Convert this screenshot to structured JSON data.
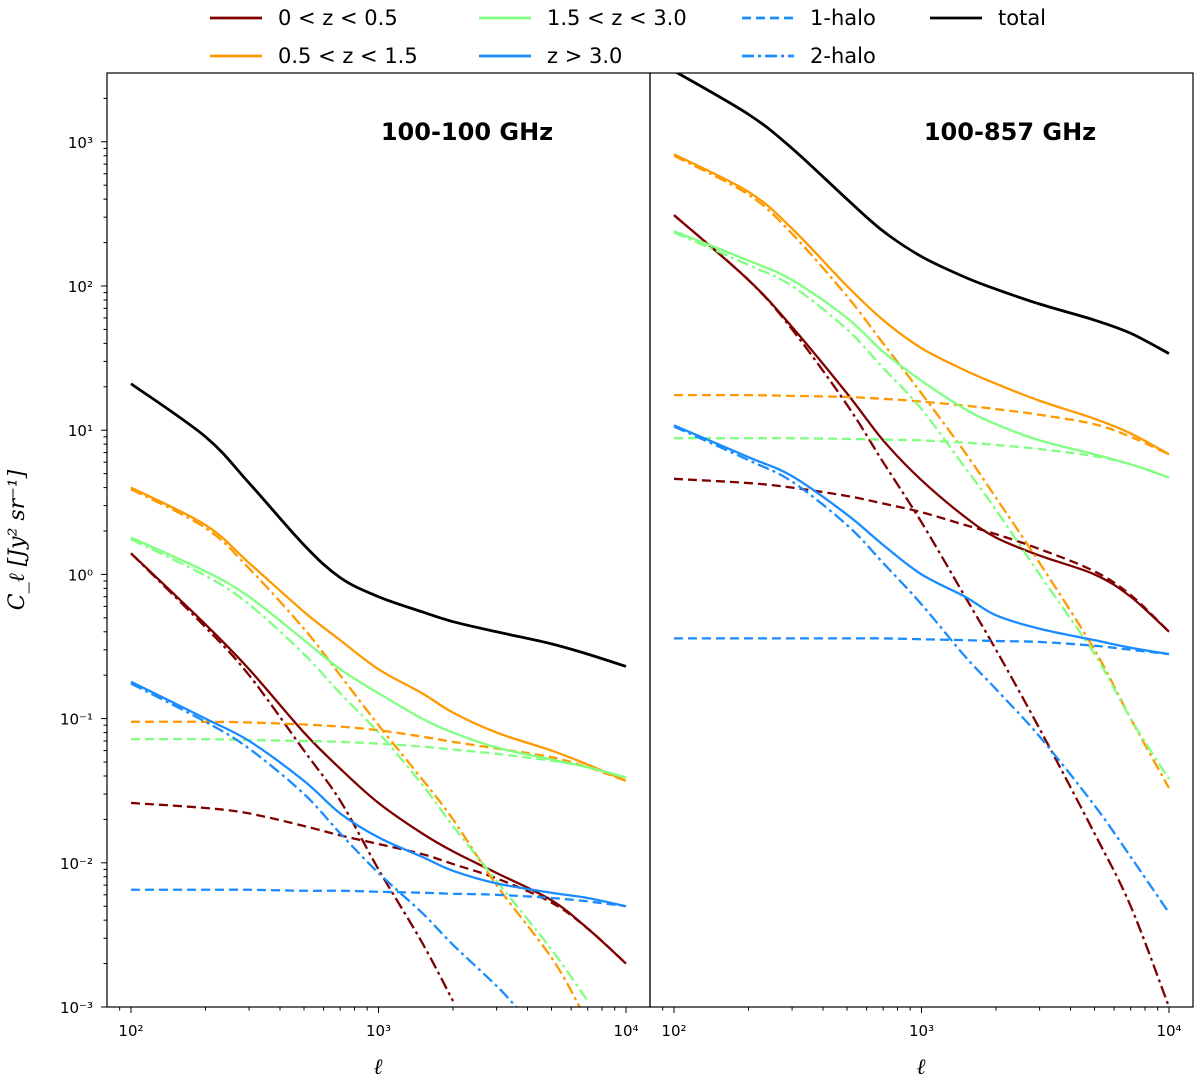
{
  "chart_data": {
    "type": "line",
    "x_scale": "log",
    "y_scale": "log",
    "xlabel": "ℓ",
    "ylabel": "C_ℓ [Jy² sr⁻¹]",
    "xlim": [
      80,
      12500
    ],
    "ylim": [
      0.001,
      3000
    ],
    "x_ticks": [
      {
        "value": 100,
        "label": "10²"
      },
      {
        "value": 1000,
        "label": "10³"
      },
      {
        "value": 10000,
        "label": "10⁴"
      }
    ],
    "y_ticks": [
      {
        "value": 0.001,
        "label": "10⁻³"
      },
      {
        "value": 0.01,
        "label": "10⁻²"
      },
      {
        "value": 0.1,
        "label": "10⁻¹"
      },
      {
        "value": 1,
        "label": "10⁰"
      },
      {
        "value": 10,
        "label": "10¹"
      },
      {
        "value": 100,
        "label": "10²"
      },
      {
        "value": 1000,
        "label": "10³"
      }
    ],
    "legend": {
      "placement": "top",
      "entries": [
        {
          "label": "0 < z < 0.5",
          "color": "#7f0000",
          "style": "solid"
        },
        {
          "label": "0.5 < z < 1.5",
          "color": "#ff9900",
          "style": "solid"
        },
        {
          "label": "1.5 < z < 3.0",
          "color": "#80ff80",
          "style": "solid"
        },
        {
          "label": "z > 3.0",
          "color": "#1a8cff",
          "style": "solid"
        },
        {
          "label": "1-halo",
          "color": "#1a8cff",
          "style": "dashed"
        },
        {
          "label": "2-halo",
          "color": "#1a8cff",
          "style": "dashdot"
        },
        {
          "label": "total",
          "color": "#000000",
          "style": "solid"
        }
      ]
    },
    "styles": {
      "total": {
        "dash": ""
      },
      "total_z": {
        "dash": ""
      },
      "1h": {
        "dash": "9,5"
      },
      "2h": {
        "dash": "12,4,3,4"
      }
    },
    "x_samples": [
      100,
      200,
      300,
      500,
      700,
      1000,
      1500,
      2000,
      3000,
      5000,
      7000,
      10000
    ],
    "panels": [
      {
        "title": "100-100 GHz",
        "series": [
          {
            "name": "total",
            "color": "#000000",
            "kind": "total",
            "x": [
              100,
              200,
              300,
              500,
              700,
              1000,
              1500,
              2000,
              3000,
              5000,
              7000,
              10000
            ],
            "y": [
              21,
              9,
              4.3,
              1.6,
              0.95,
              0.7,
              0.55,
              0.47,
              0.4,
              0.33,
              0.28,
              0.23
            ]
          },
          {
            "name": "0 < z < 0.5",
            "color": "#7f0000",
            "kind": "total_z",
            "x": [
              100,
              200,
              300,
              500,
              700,
              1000,
              1500,
              2000,
              3000,
              5000,
              7000,
              10000
            ],
            "y": [
              1.4,
              0.45,
              0.22,
              0.08,
              0.045,
              0.026,
              0.016,
              0.012,
              0.0085,
              0.0055,
              0.0035,
              0.002
            ]
          },
          {
            "name": "0 < z < 0.5 1-halo",
            "color": "#7f0000",
            "kind": "1h",
            "x": [
              100,
              200,
              300,
              500,
              700,
              1000,
              1500,
              2000,
              3000,
              5000,
              7000,
              10000
            ],
            "y": [
              0.026,
              0.024,
              0.022,
              0.018,
              0.0155,
              0.0135,
              0.0115,
              0.0098,
              0.0078,
              0.0053,
              0.0035,
              0.002
            ]
          },
          {
            "name": "0 < z < 0.5 2-halo",
            "color": "#7f0000",
            "kind": "2h",
            "x": [
              100,
              200,
              300,
              500,
              700,
              1000,
              1500,
              2000
            ],
            "y": [
              1.4,
              0.43,
              0.2,
              0.06,
              0.027,
              0.009,
              0.0028,
              0.0011
            ]
          },
          {
            "name": "0.5 < z < 1.5",
            "color": "#ff9900",
            "kind": "total_z",
            "x": [
              100,
              200,
              300,
              500,
              700,
              1000,
              1500,
              2000,
              3000,
              5000,
              7000,
              10000
            ],
            "y": [
              4,
              2.2,
              1.2,
              0.55,
              0.35,
              0.22,
              0.15,
              0.11,
              0.08,
              0.06,
              0.048,
              0.037
            ]
          },
          {
            "name": "0.5 < z < 1.5 1-halo",
            "color": "#ff9900",
            "kind": "1h",
            "x": [
              100,
              200,
              300,
              500,
              700,
              1000,
              1500,
              2000,
              3000,
              5000,
              7000,
              10000
            ],
            "y": [
              0.095,
              0.095,
              0.094,
              0.091,
              0.088,
              0.083,
              0.075,
              0.069,
              0.062,
              0.054,
              0.046,
              0.037
            ]
          },
          {
            "name": "0.5 < z < 1.5 2-halo",
            "color": "#ff9900",
            "kind": "2h",
            "x": [
              100,
              200,
              300,
              500,
              700,
              1000,
              1500,
              2000,
              3000,
              5000,
              6500
            ],
            "y": [
              3.9,
              2.1,
              1.1,
              0.42,
              0.2,
              0.09,
              0.038,
              0.02,
              0.007,
              0.0022,
              0.001
            ]
          },
          {
            "name": "1.5 < z < 3.0",
            "color": "#80ff80",
            "kind": "total_z",
            "x": [
              100,
              200,
              300,
              500,
              700,
              1000,
              1500,
              2000,
              3000,
              5000,
              7000,
              10000
            ],
            "y": [
              1.8,
              1.05,
              0.7,
              0.35,
              0.22,
              0.15,
              0.1,
              0.08,
              0.063,
              0.052,
              0.046,
              0.039
            ]
          },
          {
            "name": "1.5 < z < 3.0 1-halo",
            "color": "#80ff80",
            "kind": "1h",
            "x": [
              100,
              200,
              300,
              500,
              700,
              1000,
              1500,
              2000,
              3000,
              5000,
              7000,
              10000
            ],
            "y": [
              0.072,
              0.072,
              0.071,
              0.07,
              0.069,
              0.067,
              0.064,
              0.061,
              0.057,
              0.051,
              0.046,
              0.039
            ]
          },
          {
            "name": "1.5 < z < 3.0 2-halo",
            "color": "#80ff80",
            "kind": "2h",
            "x": [
              100,
              200,
              300,
              500,
              700,
              1000,
              1500,
              2000,
              3000,
              5000,
              7000
            ],
            "y": [
              1.75,
              0.98,
              0.62,
              0.28,
              0.15,
              0.08,
              0.035,
              0.018,
              0.0075,
              0.0025,
              0.0011
            ]
          },
          {
            "name": "z > 3.0",
            "color": "#1a8cff",
            "kind": "total_z",
            "x": [
              100,
              200,
              300,
              500,
              700,
              1000,
              1500,
              2000,
              3000,
              5000,
              7000,
              10000
            ],
            "y": [
              0.18,
              0.1,
              0.07,
              0.037,
              0.022,
              0.015,
              0.011,
              0.0088,
              0.0072,
              0.0062,
              0.0057,
              0.005
            ]
          },
          {
            "name": "z > 3.0 1-halo",
            "color": "#1a8cff",
            "kind": "1h",
            "x": [
              100,
              200,
              300,
              500,
              700,
              1000,
              1500,
              2000,
              3000,
              5000,
              7000,
              10000
            ],
            "y": [
              0.0065,
              0.0065,
              0.0065,
              0.0064,
              0.0064,
              0.0063,
              0.0062,
              0.0061,
              0.006,
              0.0057,
              0.0054,
              0.005
            ]
          },
          {
            "name": "z > 3.0 2-halo",
            "color": "#1a8cff",
            "kind": "2h",
            "x": [
              100,
              200,
              300,
              500,
              700,
              1000,
              1500,
              2000,
              3000,
              3600
            ],
            "y": [
              0.175,
              0.095,
              0.062,
              0.03,
              0.016,
              0.0085,
              0.0045,
              0.0027,
              0.0014,
              0.001
            ]
          }
        ]
      },
      {
        "title": "100-857 GHz",
        "series": [
          {
            "name": "total",
            "color": "#000000",
            "kind": "total",
            "x": [
              100,
              200,
              300,
              500,
              700,
              1000,
              1500,
              2000,
              3000,
              5000,
              7000,
              10000
            ],
            "y": [
              3100,
              1550,
              900,
              400,
              240,
              160,
              115,
              95,
              75,
              58,
              47,
              34
            ]
          },
          {
            "name": "0 < z < 0.5",
            "color": "#7f0000",
            "kind": "total_z",
            "x": [
              100,
              200,
              300,
              500,
              700,
              1000,
              1500,
              2000,
              3000,
              5000,
              7000,
              10000
            ],
            "y": [
              310,
              110,
              52,
              18,
              8.5,
              4.5,
              2.5,
              1.8,
              1.35,
              1.0,
              0.7,
              0.4
            ]
          },
          {
            "name": "0 < z < 0.5 1-halo",
            "color": "#7f0000",
            "kind": "1h",
            "x": [
              100,
              200,
              300,
              500,
              700,
              1000,
              1500,
              2000,
              3000,
              5000,
              7000,
              10000
            ],
            "y": [
              4.6,
              4.3,
              4.0,
              3.5,
              3.1,
              2.7,
              2.2,
              1.9,
              1.5,
              1.05,
              0.72,
              0.4
            ]
          },
          {
            "name": "0 < z < 0.5 2-halo",
            "color": "#7f0000",
            "kind": "2h",
            "x": [
              100,
              200,
              300,
              500,
              700,
              1000,
              1500,
              2000,
              3000,
              5000,
              7000,
              10000
            ],
            "y": [
              310,
              110,
              50,
              15,
              6,
              2.3,
              0.7,
              0.3,
              0.085,
              0.016,
              0.005,
              0.001
            ]
          },
          {
            "name": "0.5 < z < 1.5",
            "color": "#ff9900",
            "kind": "total_z",
            "x": [
              100,
              200,
              300,
              500,
              700,
              1000,
              1500,
              2000,
              3000,
              5000,
              7000,
              10000
            ],
            "y": [
              820,
              450,
              250,
              100,
              58,
              37,
              26,
              21,
              16,
              12,
              9.5,
              6.8
            ]
          },
          {
            "name": "0.5 < z < 1.5 1-halo",
            "color": "#ff9900",
            "kind": "1h",
            "x": [
              100,
              200,
              300,
              500,
              700,
              1000,
              1500,
              2000,
              3000,
              5000,
              7000,
              10000
            ],
            "y": [
              17.5,
              17.5,
              17.3,
              17,
              16.5,
              15.8,
              14.8,
              14,
              12.8,
              11,
              9,
              6.8
            ]
          },
          {
            "name": "0.5 < z < 1.5 2-halo",
            "color": "#ff9900",
            "kind": "2h",
            "x": [
              100,
              200,
              300,
              500,
              700,
              1000,
              1500,
              2000,
              3000,
              5000,
              7000,
              10000
            ],
            "y": [
              800,
              430,
              230,
              85,
              40,
              18,
              7,
              3.4,
              1.2,
              0.3,
              0.1,
              0.033
            ]
          },
          {
            "name": "1.5 < z < 3.0",
            "color": "#80ff80",
            "kind": "total_z",
            "x": [
              100,
              200,
              300,
              500,
              700,
              1000,
              1500,
              2000,
              3000,
              5000,
              7000,
              10000
            ],
            "y": [
              240,
              150,
              110,
              60,
              35,
              22,
              14,
              11,
              8.5,
              6.8,
              5.8,
              4.7
            ]
          },
          {
            "name": "1.5 < z < 3.0 1-halo",
            "color": "#80ff80",
            "kind": "1h",
            "x": [
              100,
              200,
              300,
              500,
              700,
              1000,
              1500,
              2000,
              3000,
              5000,
              7000,
              10000
            ],
            "y": [
              8.8,
              8.8,
              8.8,
              8.7,
              8.6,
              8.5,
              8.2,
              7.9,
              7.4,
              6.6,
              5.8,
              4.7
            ]
          },
          {
            "name": "1.5 < z < 3.0 2-halo",
            "color": "#80ff80",
            "kind": "2h",
            "x": [
              100,
              200,
              300,
              500,
              700,
              1000,
              1500,
              2000,
              3000,
              5000,
              7000,
              10000
            ],
            "y": [
              235,
              140,
              100,
              50,
              27,
              14,
              5.5,
              2.8,
              1.0,
              0.28,
              0.1,
              0.038
            ]
          },
          {
            "name": "z > 3.0",
            "color": "#1a8cff",
            "kind": "total_z",
            "x": [
              100,
              200,
              300,
              500,
              700,
              1000,
              1500,
              2000,
              3000,
              5000,
              7000,
              10000
            ],
            "y": [
              10.8,
              6.5,
              4.8,
              2.6,
              1.6,
              1.0,
              0.7,
              0.52,
              0.42,
              0.35,
              0.31,
              0.28
            ]
          },
          {
            "name": "z > 3.0 1-halo",
            "color": "#1a8cff",
            "kind": "1h",
            "x": [
              100,
              200,
              300,
              500,
              700,
              1000,
              1500,
              2000,
              3000,
              5000,
              7000,
              10000
            ],
            "y": [
              0.36,
              0.36,
              0.36,
              0.36,
              0.36,
              0.355,
              0.35,
              0.345,
              0.34,
              0.32,
              0.3,
              0.28
            ]
          },
          {
            "name": "z > 3.0 2-halo",
            "color": "#1a8cff",
            "kind": "2h",
            "x": [
              100,
              200,
              300,
              500,
              700,
              1000,
              1500,
              2000,
              3000,
              5000,
              7000,
              10000
            ],
            "y": [
              10.6,
              6.2,
              4.4,
              2.2,
              1.2,
              0.62,
              0.27,
              0.16,
              0.075,
              0.025,
              0.011,
              0.0045
            ]
          }
        ]
      }
    ]
  }
}
